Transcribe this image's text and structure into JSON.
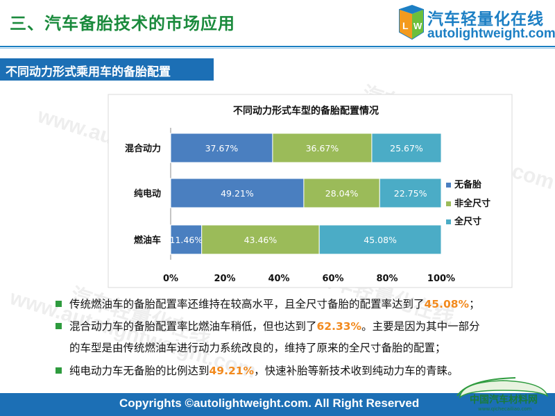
{
  "header": {
    "title": "三、汽车备胎技术的市场应用",
    "logo_cn": "汽车轻量化在线",
    "logo_en": "autolightweight.com"
  },
  "section": {
    "label": "不同动力形式乘用车的备胎配置"
  },
  "watermarks": {
    "cn": "汽车轻量化在线",
    "en": "www.autolightweight.com"
  },
  "chart_data": {
    "type": "bar",
    "orientation": "horizontal",
    "stacked": "percent",
    "title": "不同动力形式车型的备胎配置情况",
    "categories": [
      "混合动力",
      "纯电动",
      "燃油车"
    ],
    "series": [
      {
        "name": "无备胎",
        "values": [
          37.67,
          49.21,
          11.46
        ],
        "labels": [
          "37.67%",
          "49.21%",
          "11.46%"
        ],
        "color": "#4a7fc0"
      },
      {
        "name": "非全尺寸",
        "values": [
          36.67,
          28.04,
          43.46
        ],
        "labels": [
          "36.67%",
          "28.04%",
          "43.46%"
        ],
        "color": "#9bbb59"
      },
      {
        "name": "全尺寸",
        "values": [
          25.67,
          22.75,
          45.08
        ],
        "labels": [
          "25.67%",
          "22.75%",
          "45.08%"
        ],
        "color": "#4bacc6"
      }
    ],
    "x_ticks": [
      "0%",
      "20%",
      "40%",
      "60%",
      "80%",
      "100%"
    ],
    "xlim": [
      0,
      100
    ],
    "legend": "right",
    "grid": false
  },
  "bullets": [
    {
      "parts": [
        "传统燃油车的备胎配置率还维持在较高水平，且全尺寸备胎的配置率达到了",
        "45.08%",
        "；"
      ]
    },
    {
      "parts": [
        "混合动力车的备胎配置率比燃油车稍低，但也达到了",
        "62.33%",
        "。主要是因为其中一部分"
      ]
    },
    {
      "parts": [
        "的车型是由传统燃油车进行动力系统改良的，维持了原来的全尺寸备胎的配置；",
        "",
        ""
      ]
    },
    {
      "parts": [
        "纯电动力车无备胎的比例达到",
        "49.21%",
        "，快速补胎等新技术收到纯动力车的青睐。"
      ]
    }
  ],
  "footer": {
    "copyright": "Copyrights ©autolightweight.com. All Right Reserved",
    "badge_cn": "中国汽车材料网",
    "badge_en": "www.qichecailiao.com"
  },
  "colors": {
    "brand_blue": "#1c6fb5",
    "title_green": "#1a8a3c",
    "highlight": "#f28a1e"
  }
}
